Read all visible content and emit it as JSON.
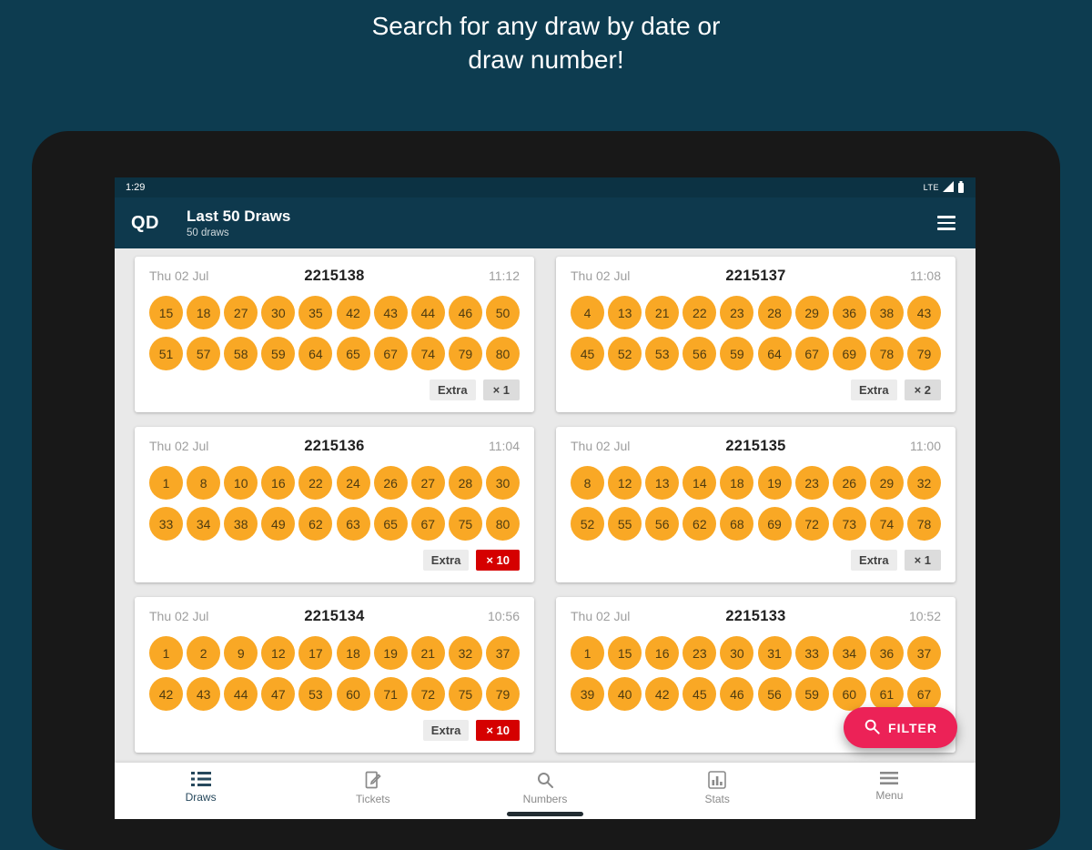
{
  "hero": {
    "line1": "Search for any draw by date or",
    "line2": "draw number!"
  },
  "status_bar": {
    "time": "1:29",
    "network": "LTE"
  },
  "app_bar": {
    "logo": "QD",
    "title": "Last 50 Draws",
    "subtitle": "50 draws"
  },
  "cards": [
    {
      "date": "Thu 02 Jul",
      "draw_number": "2215138",
      "time": "11:12",
      "row1": [
        15,
        18,
        27,
        30,
        35,
        42,
        43,
        44,
        46,
        50
      ],
      "row2": [
        51,
        57,
        58,
        59,
        64,
        65,
        67,
        74,
        79,
        80
      ],
      "extra": {
        "label": "Extra",
        "multiplier": "× 1",
        "style": "gray"
      }
    },
    {
      "date": "Thu 02 Jul",
      "draw_number": "2215137",
      "time": "11:08",
      "row1": [
        4,
        13,
        21,
        22,
        23,
        28,
        29,
        36,
        38,
        43
      ],
      "row2": [
        45,
        52,
        53,
        56,
        59,
        64,
        67,
        69,
        78,
        79
      ],
      "extra": {
        "label": "Extra",
        "multiplier": "× 2",
        "style": "gray"
      }
    },
    {
      "date": "Thu 02 Jul",
      "draw_number": "2215136",
      "time": "11:04",
      "row1": [
        1,
        8,
        10,
        16,
        22,
        24,
        26,
        27,
        28,
        30
      ],
      "row2": [
        33,
        34,
        38,
        49,
        62,
        63,
        65,
        67,
        75,
        80
      ],
      "extra": {
        "label": "Extra",
        "multiplier": "× 10",
        "style": "red"
      }
    },
    {
      "date": "Thu 02 Jul",
      "draw_number": "2215135",
      "time": "11:00",
      "row1": [
        8,
        12,
        13,
        14,
        18,
        19,
        23,
        26,
        29,
        32
      ],
      "row2": [
        52,
        55,
        56,
        62,
        68,
        69,
        72,
        73,
        74,
        78
      ],
      "extra": {
        "label": "Extra",
        "multiplier": "× 1",
        "style": "gray"
      }
    },
    {
      "date": "Thu 02 Jul",
      "draw_number": "2215134",
      "time": "10:56",
      "row1": [
        1,
        2,
        9,
        12,
        17,
        18,
        19,
        21,
        32,
        37
      ],
      "row2": [
        42,
        43,
        44,
        47,
        53,
        60,
        71,
        72,
        75,
        79
      ],
      "extra": {
        "label": "Extra",
        "multiplier": "× 10",
        "style": "red"
      }
    },
    {
      "date": "Thu 02 Jul",
      "draw_number": "2215133",
      "time": "10:52",
      "row1": [
        1,
        15,
        16,
        23,
        30,
        31,
        33,
        34,
        36,
        37
      ],
      "row2": [
        39,
        40,
        42,
        45,
        46,
        56,
        59,
        60,
        61,
        67
      ],
      "extra": null
    }
  ],
  "fab": {
    "label": "FILTER"
  },
  "bottom_nav": {
    "items": [
      {
        "label": "Draws",
        "active": true
      },
      {
        "label": "Tickets",
        "active": false
      },
      {
        "label": "Numbers",
        "active": false
      },
      {
        "label": "Stats",
        "active": false
      },
      {
        "label": "Menu",
        "active": false
      }
    ]
  },
  "colors": {
    "page_bg": "#0d3c50",
    "app_bar": "#0e394d",
    "ball_orange": "#f9a825",
    "multiplier_red": "#d50000",
    "fab_pink": "#ec2257",
    "nav_active": "#26485c"
  }
}
